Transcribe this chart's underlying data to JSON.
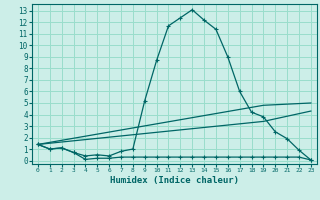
{
  "xlabel": "Humidex (Indice chaleur)",
  "bg_color": "#cceee8",
  "grid_color": "#99ddcc",
  "line_color": "#006666",
  "xlim": [
    -0.5,
    23.5
  ],
  "ylim": [
    -0.3,
    13.6
  ],
  "xticks": [
    0,
    1,
    2,
    3,
    4,
    5,
    6,
    7,
    8,
    9,
    10,
    11,
    12,
    13,
    14,
    15,
    16,
    17,
    18,
    19,
    20,
    21,
    22,
    23
  ],
  "yticks": [
    0,
    1,
    2,
    3,
    4,
    5,
    6,
    7,
    8,
    9,
    10,
    11,
    12,
    13
  ],
  "curve1_x": [
    0,
    1,
    2,
    3,
    4,
    5,
    6,
    7,
    8,
    9,
    10,
    11,
    12,
    13,
    14,
    15,
    16,
    17,
    18,
    19,
    20,
    21,
    22,
    23
  ],
  "curve1_y": [
    1.4,
    1.0,
    1.1,
    0.7,
    0.4,
    0.5,
    0.4,
    0.8,
    1.0,
    5.2,
    8.7,
    11.7,
    12.4,
    13.1,
    12.2,
    11.4,
    9.0,
    6.0,
    4.2,
    3.8,
    2.5,
    1.9,
    0.9,
    0.05
  ],
  "curve2_x": [
    0,
    1,
    2,
    3,
    4,
    5,
    6,
    7,
    8,
    9,
    10,
    11,
    12,
    13,
    14,
    15,
    16,
    17,
    18,
    19,
    20,
    21,
    22,
    23
  ],
  "curve2_y": [
    1.4,
    1.0,
    1.1,
    0.7,
    0.1,
    0.2,
    0.2,
    0.3,
    0.3,
    0.3,
    0.3,
    0.3,
    0.3,
    0.3,
    0.3,
    0.3,
    0.3,
    0.3,
    0.3,
    0.3,
    0.3,
    0.3,
    0.3,
    0.05
  ],
  "curve3_x": [
    0,
    19,
    23
  ],
  "curve3_y": [
    1.4,
    4.8,
    5.0
  ],
  "curve4_x": [
    0,
    19,
    23
  ],
  "curve4_y": [
    1.4,
    3.4,
    4.3
  ]
}
